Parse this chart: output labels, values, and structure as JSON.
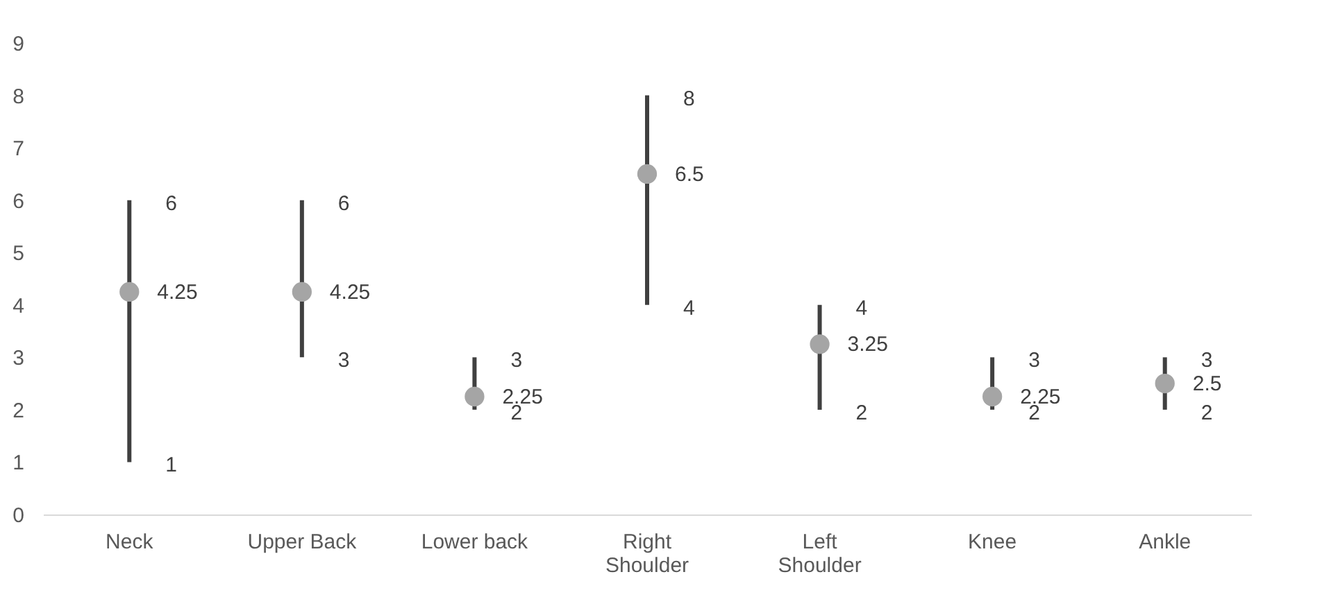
{
  "chart_data": {
    "type": "scatter",
    "categories": [
      "Neck",
      "Upper Back",
      "Lower back",
      "Right Shoulder",
      "Left Shoulder",
      "Knee",
      "Ankle"
    ],
    "series": [
      {
        "color": "#a5a5a5",
        "values": [
          4.25,
          4.25,
          2.25,
          6.5,
          3.25,
          2.25,
          2.5
        ],
        "errors": [
          [
            1,
            6
          ],
          [
            3,
            6
          ],
          [
            2,
            3
          ],
          [
            4,
            8
          ],
          [
            2,
            4
          ],
          [
            2,
            3
          ],
          [
            2,
            3
          ]
        ]
      }
    ],
    "data_labels": true,
    "annotations": [
      {
        "text": "6",
        "x": "Neck",
        "y": 6
      },
      {
        "text": "1",
        "x": "Neck",
        "y": 1
      },
      {
        "text": "6",
        "x": "Upper Back",
        "y": 6
      },
      {
        "text": "3",
        "x": "Upper Back",
        "y": 3
      },
      {
        "text": "3",
        "x": "Lower back",
        "y": 3
      },
      {
        "text": "2",
        "x": "Lower back",
        "y": 2
      },
      {
        "text": "8",
        "x": "Right Shoulder",
        "y": 8
      },
      {
        "text": "4",
        "x": "Right Shoulder",
        "y": 4
      },
      {
        "text": "4",
        "x": "Left Shoulder",
        "y": 4
      },
      {
        "text": "2",
        "x": "Left Shoulder",
        "y": 2
      },
      {
        "text": "3",
        "x": "Knee",
        "y": 3
      },
      {
        "text": "2",
        "x": "Knee",
        "y": 2
      },
      {
        "text": "3",
        "x": "Ankle",
        "y": 3
      },
      {
        "text": "2",
        "x": "Ankle",
        "y": 2
      }
    ],
    "ylim": [
      0,
      9
    ],
    "yticks": [
      0,
      1,
      2,
      3,
      4,
      5,
      6,
      7,
      8,
      9
    ],
    "grid": false,
    "marker": "circle"
  }
}
